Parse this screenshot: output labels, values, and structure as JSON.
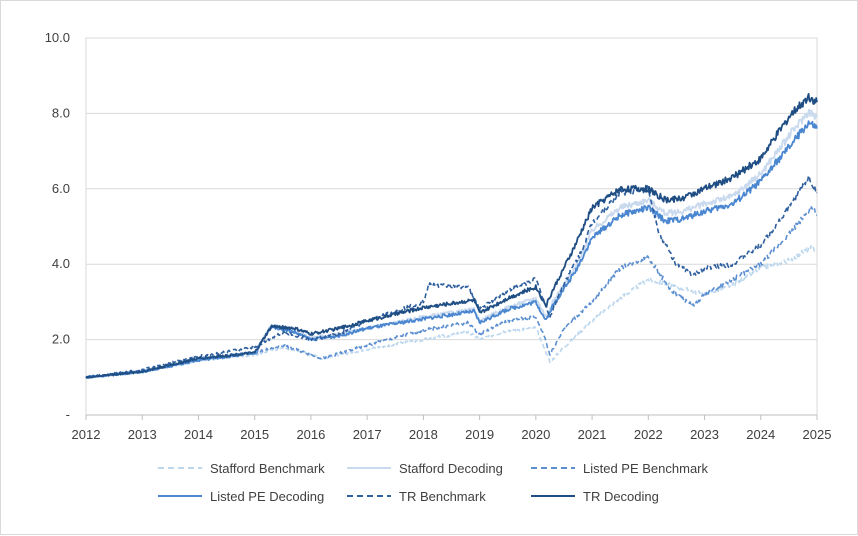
{
  "chart_data": {
    "type": "line",
    "title": "",
    "xlabel": "",
    "ylabel": "",
    "xlim": [
      2012,
      2025
    ],
    "ylim": [
      0,
      10
    ],
    "grid": true,
    "legend_position": "bottom",
    "x_ticks": [
      "2012",
      "2013",
      "2014",
      "2015",
      "2016",
      "2017",
      "2018",
      "2019",
      "2020",
      "2021",
      "2022",
      "2023",
      "2024",
      "2025"
    ],
    "y_ticks": [
      "-",
      "2.0",
      "4.0",
      "6.0",
      "8.0",
      "10.0"
    ],
    "y_tick_values": [
      0,
      2,
      4,
      6,
      8,
      10
    ],
    "series": [
      {
        "name": "Stafford Benchmark",
        "color": "#bdd7ee",
        "dash": "dashed",
        "points": [
          [
            2012,
            1.0
          ],
          [
            2013,
            1.15
          ],
          [
            2014,
            1.45
          ],
          [
            2015,
            1.6
          ],
          [
            2015.5,
            1.8
          ],
          [
            2016,
            1.6
          ],
          [
            2016.2,
            1.5
          ],
          [
            2017,
            1.75
          ],
          [
            2018,
            2.0
          ],
          [
            2018.8,
            2.2
          ],
          [
            2019,
            2.0
          ],
          [
            2019.5,
            2.25
          ],
          [
            2020,
            2.3
          ],
          [
            2020.15,
            1.8
          ],
          [
            2020.25,
            1.4
          ],
          [
            2020.5,
            1.8
          ],
          [
            2021,
            2.5
          ],
          [
            2021.5,
            3.1
          ],
          [
            2022,
            3.6
          ],
          [
            2022.5,
            3.4
          ],
          [
            2023,
            3.2
          ],
          [
            2023.5,
            3.45
          ],
          [
            2024,
            3.9
          ],
          [
            2024.5,
            4.1
          ],
          [
            2024.9,
            4.45
          ],
          [
            2025,
            4.3
          ]
        ]
      },
      {
        "name": "Stafford Decoding",
        "color": "#c9d9ee",
        "dash": "solid",
        "points": [
          [
            2012,
            1.0
          ],
          [
            2013,
            1.15
          ],
          [
            2014,
            1.45
          ],
          [
            2015,
            1.65
          ],
          [
            2015.3,
            2.4
          ],
          [
            2015.7,
            2.25
          ],
          [
            2016,
            2.05
          ],
          [
            2016.5,
            2.15
          ],
          [
            2017,
            2.3
          ],
          [
            2018,
            2.6
          ],
          [
            2018.9,
            2.8
          ],
          [
            2019,
            2.5
          ],
          [
            2019.5,
            2.85
          ],
          [
            2020,
            3.1
          ],
          [
            2020.18,
            2.6
          ],
          [
            2020.3,
            3.0
          ],
          [
            2020.7,
            3.9
          ],
          [
            2021,
            4.9
          ],
          [
            2021.5,
            5.5
          ],
          [
            2022,
            5.7
          ],
          [
            2022.3,
            5.35
          ],
          [
            2022.6,
            5.4
          ],
          [
            2023,
            5.6
          ],
          [
            2023.5,
            5.8
          ],
          [
            2024,
            6.4
          ],
          [
            2024.5,
            7.4
          ],
          [
            2024.85,
            8.05
          ],
          [
            2025,
            7.9
          ]
        ]
      },
      {
        "name": "Listed PE Benchmark",
        "color": "#5b8fd0",
        "dash": "dashed",
        "points": [
          [
            2012,
            1.0
          ],
          [
            2013,
            1.15
          ],
          [
            2014,
            1.5
          ],
          [
            2015,
            1.65
          ],
          [
            2015.5,
            1.85
          ],
          [
            2016,
            1.6
          ],
          [
            2016.2,
            1.5
          ],
          [
            2017,
            1.85
          ],
          [
            2018,
            2.25
          ],
          [
            2018.8,
            2.45
          ],
          [
            2019,
            2.15
          ],
          [
            2019.5,
            2.5
          ],
          [
            2020,
            2.6
          ],
          [
            2020.15,
            2.1
          ],
          [
            2020.25,
            1.6
          ],
          [
            2020.5,
            2.3
          ],
          [
            2021,
            3.0
          ],
          [
            2021.5,
            3.9
          ],
          [
            2022,
            4.2
          ],
          [
            2022.4,
            3.3
          ],
          [
            2022.8,
            2.9
          ],
          [
            2023,
            3.2
          ],
          [
            2023.5,
            3.6
          ],
          [
            2024,
            4.0
          ],
          [
            2024.5,
            4.8
          ],
          [
            2024.9,
            5.5
          ],
          [
            2025,
            5.3
          ]
        ]
      },
      {
        "name": "Listed PE Decoding",
        "color": "#4a87d0",
        "dash": "solid",
        "points": [
          [
            2012,
            1.0
          ],
          [
            2013,
            1.15
          ],
          [
            2014,
            1.45
          ],
          [
            2015,
            1.65
          ],
          [
            2015.3,
            2.35
          ],
          [
            2015.7,
            2.2
          ],
          [
            2016,
            2.0
          ],
          [
            2016.5,
            2.1
          ],
          [
            2017,
            2.3
          ],
          [
            2018,
            2.55
          ],
          [
            2018.9,
            2.75
          ],
          [
            2019,
            2.45
          ],
          [
            2019.5,
            2.8
          ],
          [
            2020,
            3.0
          ],
          [
            2020.18,
            2.5
          ],
          [
            2020.3,
            2.9
          ],
          [
            2020.7,
            3.8
          ],
          [
            2021,
            4.7
          ],
          [
            2021.5,
            5.3
          ],
          [
            2022,
            5.5
          ],
          [
            2022.3,
            5.15
          ],
          [
            2022.6,
            5.2
          ],
          [
            2023,
            5.4
          ],
          [
            2023.5,
            5.6
          ],
          [
            2024,
            6.2
          ],
          [
            2024.5,
            7.1
          ],
          [
            2024.85,
            7.75
          ],
          [
            2025,
            7.6
          ]
        ]
      },
      {
        "name": "TR Benchmark",
        "color": "#2e5f9e",
        "dash": "dashed",
        "points": [
          [
            2012,
            1.0
          ],
          [
            2013,
            1.2
          ],
          [
            2014,
            1.55
          ],
          [
            2015,
            1.8
          ],
          [
            2015.5,
            2.2
          ],
          [
            2016,
            2.0
          ],
          [
            2016.5,
            2.15
          ],
          [
            2017,
            2.5
          ],
          [
            2018,
            3.0
          ],
          [
            2018.1,
            3.45
          ],
          [
            2018.8,
            3.4
          ],
          [
            2019,
            2.8
          ],
          [
            2019.5,
            3.3
          ],
          [
            2020,
            3.6
          ],
          [
            2020.15,
            3.0
          ],
          [
            2020.25,
            2.6
          ],
          [
            2020.5,
            3.5
          ],
          [
            2020.8,
            4.3
          ],
          [
            2021,
            5.1
          ],
          [
            2021.5,
            5.9
          ],
          [
            2022,
            6.0
          ],
          [
            2022.2,
            4.8
          ],
          [
            2022.5,
            4.0
          ],
          [
            2022.8,
            3.7
          ],
          [
            2023,
            3.9
          ],
          [
            2023.5,
            4.0
          ],
          [
            2024,
            4.5
          ],
          [
            2024.5,
            5.5
          ],
          [
            2024.85,
            6.3
          ],
          [
            2025,
            5.9
          ]
        ]
      },
      {
        "name": "TR Decoding",
        "color": "#1f4e84",
        "dash": "solid",
        "points": [
          [
            2012,
            1.0
          ],
          [
            2013,
            1.15
          ],
          [
            2014,
            1.5
          ],
          [
            2015,
            1.65
          ],
          [
            2015.3,
            2.35
          ],
          [
            2015.7,
            2.3
          ],
          [
            2016,
            2.15
          ],
          [
            2016.5,
            2.3
          ],
          [
            2017,
            2.5
          ],
          [
            2018,
            2.85
          ],
          [
            2018.9,
            3.05
          ],
          [
            2019,
            2.7
          ],
          [
            2019.5,
            3.1
          ],
          [
            2020,
            3.4
          ],
          [
            2020.18,
            2.9
          ],
          [
            2020.3,
            3.3
          ],
          [
            2020.7,
            4.5
          ],
          [
            2021,
            5.5
          ],
          [
            2021.5,
            6.0
          ],
          [
            2022,
            6.0
          ],
          [
            2022.3,
            5.7
          ],
          [
            2022.6,
            5.75
          ],
          [
            2023,
            6.0
          ],
          [
            2023.5,
            6.3
          ],
          [
            2024,
            6.8
          ],
          [
            2024.5,
            7.9
          ],
          [
            2024.85,
            8.45
          ],
          [
            2025,
            8.3
          ]
        ]
      }
    ]
  }
}
